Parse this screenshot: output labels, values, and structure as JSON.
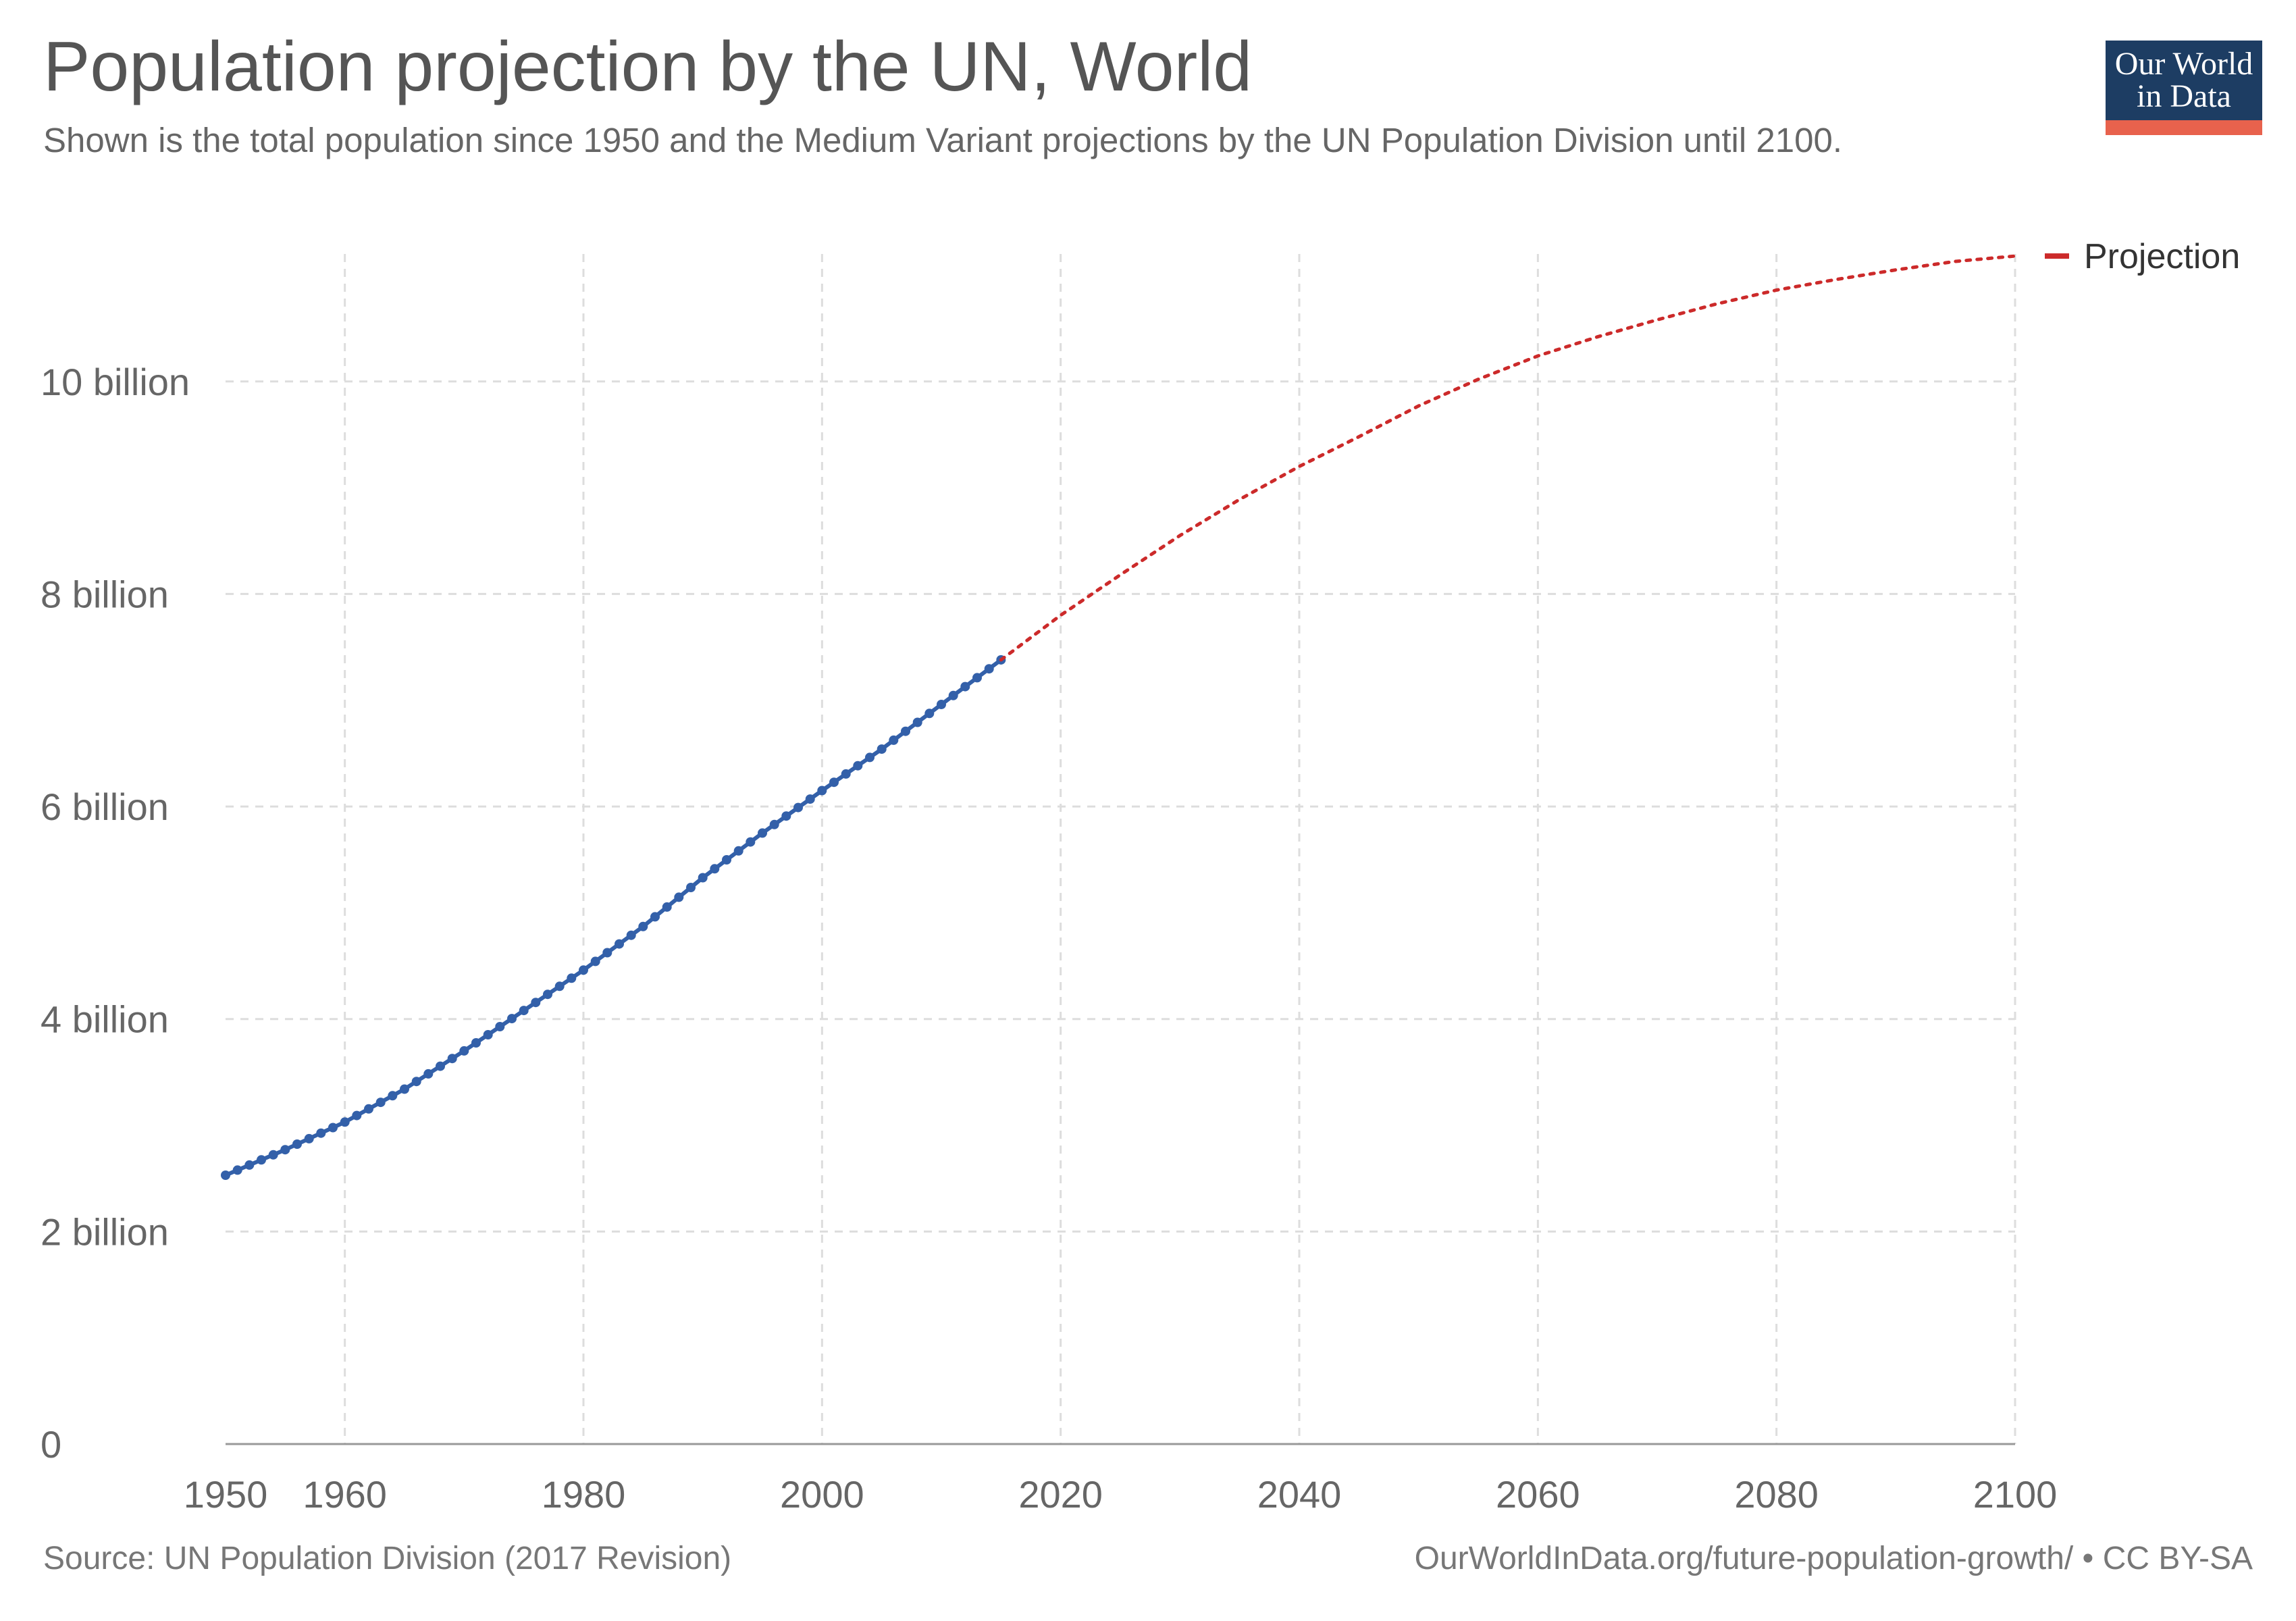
{
  "header": {
    "title": "Population projection by the UN, World",
    "subtitle": "Shown is the total population since 1950 and the Medium Variant projections by the UN Population Division until 2100."
  },
  "logo": {
    "line1": "Our World",
    "line2": "in Data",
    "bg_color": "#1d3d63",
    "accent_color": "#e8624d"
  },
  "footer": {
    "source": "Source: UN Population Division (2017 Revision)",
    "url": "OurWorldInData.org/future-population-growth/ • CC BY-SA"
  },
  "chart_data": {
    "type": "line",
    "title": "Population projection by the UN, World",
    "xlabel": "",
    "ylabel": "",
    "xlim": [
      1950,
      2100
    ],
    "ylim": [
      0,
      11200000000
    ],
    "x_ticks": [
      {
        "value": 1950,
        "label": "1950"
      },
      {
        "value": 1960,
        "label": "1960"
      },
      {
        "value": 1980,
        "label": "1980"
      },
      {
        "value": 2000,
        "label": "2000"
      },
      {
        "value": 2020,
        "label": "2020"
      },
      {
        "value": 2040,
        "label": "2040"
      },
      {
        "value": 2060,
        "label": "2060"
      },
      {
        "value": 2080,
        "label": "2080"
      },
      {
        "value": 2100,
        "label": "2100"
      }
    ],
    "y_ticks": [
      {
        "value": 0,
        "label": "0"
      },
      {
        "value": 2000000000,
        "label": "2 billion"
      },
      {
        "value": 4000000000,
        "label": "4 billion"
      },
      {
        "value": 6000000000,
        "label": "6 billion"
      },
      {
        "value": 8000000000,
        "label": "8 billion"
      },
      {
        "value": 10000000000,
        "label": "10 billion"
      }
    ],
    "grid": true,
    "legend_position": "right",
    "series": [
      {
        "color": "#3360a9",
        "style": "solid-with-markers",
        "points": [
          [
            1950,
            2530000000
          ],
          [
            1955,
            2770000000
          ],
          [
            1960,
            3030000000
          ],
          [
            1965,
            3340000000
          ],
          [
            1970,
            3700000000
          ],
          [
            1975,
            4080000000
          ],
          [
            1980,
            4460000000
          ],
          [
            1985,
            4870000000
          ],
          [
            1990,
            5330000000
          ],
          [
            1995,
            5750000000
          ],
          [
            2000,
            6150000000
          ],
          [
            2005,
            6540000000
          ],
          [
            2010,
            6960000000
          ],
          [
            2015,
            7380000000
          ]
        ]
      },
      {
        "name": "Projection",
        "color": "#cc2a2a",
        "style": "dotted",
        "points": [
          [
            2015,
            7380000000
          ],
          [
            2020,
            7800000000
          ],
          [
            2025,
            8180000000
          ],
          [
            2030,
            8550000000
          ],
          [
            2035,
            8890000000
          ],
          [
            2040,
            9200000000
          ],
          [
            2045,
            9480000000
          ],
          [
            2050,
            9770000000
          ],
          [
            2055,
            10020000000
          ],
          [
            2060,
            10240000000
          ],
          [
            2065,
            10420000000
          ],
          [
            2070,
            10580000000
          ],
          [
            2075,
            10730000000
          ],
          [
            2080,
            10860000000
          ],
          [
            2085,
            10960000000
          ],
          [
            2090,
            11050000000
          ],
          [
            2095,
            11130000000
          ],
          [
            2100,
            11180000000
          ]
        ]
      }
    ]
  }
}
